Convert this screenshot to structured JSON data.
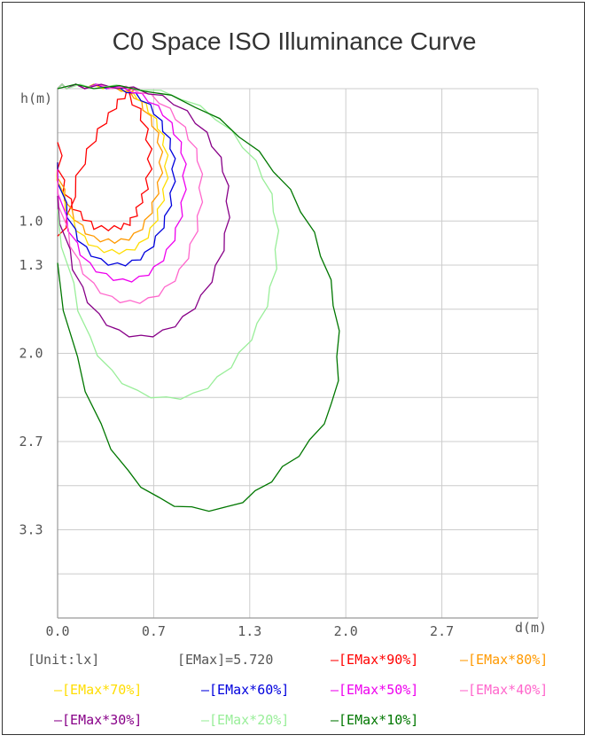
{
  "chart_data": {
    "type": "line",
    "title": "C0 Space ISO Illuminance Curve",
    "ylabel": "h(m)",
    "xlabel": "d(m)",
    "x_ticks": [
      "0.0",
      "0.7",
      "1.3",
      "2.0",
      "2.7"
    ],
    "y_ticks": [
      "1.0",
      "1.3",
      "2.0",
      "2.7",
      "3.3"
    ],
    "xlim": [
      0,
      2.65
    ],
    "ylim": [
      0,
      3.95
    ],
    "y_inverted": true,
    "grid": true,
    "unit_text": "[Unit:lx]",
    "emax_text": "[EMax]=5.720",
    "series": [
      {
        "name": "[EMax*90%]",
        "color": "#ff0000",
        "points": [
          [
            0,
            1.1
          ],
          [
            0.05,
            0.95
          ],
          [
            0.1,
            0.65
          ],
          [
            0.16,
            0.45
          ],
          [
            0.22,
            0.3
          ],
          [
            0.28,
            0.18
          ],
          [
            0.33,
            0.08
          ],
          [
            0.38,
            0.02
          ],
          [
            0.42,
            0
          ],
          [
            0.4,
            0.05
          ],
          [
            0.46,
            0.15
          ],
          [
            0.5,
            0.3
          ],
          [
            0.52,
            0.45
          ],
          [
            0.52,
            0.6
          ],
          [
            0.5,
            0.75
          ],
          [
            0.47,
            0.85
          ],
          [
            0.44,
            0.95
          ],
          [
            0.4,
            1.02
          ],
          [
            0.35,
            1.05
          ],
          [
            0.28,
            1.06
          ],
          [
            0.2,
            1.05
          ],
          [
            0.14,
            0.98
          ],
          [
            0.08,
            0.9
          ],
          [
            0.03,
            0.78
          ],
          [
            0,
            0.6
          ],
          [
            0,
            0.4
          ]
        ]
      },
      {
        "name": "[EMax*80%]",
        "color": "#ff9900",
        "points": [
          [
            0,
            0.55
          ],
          [
            0.04,
            0.75
          ],
          [
            0.08,
            0.9
          ],
          [
            0.14,
            1.02
          ],
          [
            0.2,
            1.1
          ],
          [
            0.28,
            1.12
          ],
          [
            0.35,
            1.12
          ],
          [
            0.42,
            1.08
          ],
          [
            0.48,
            0.98
          ],
          [
            0.52,
            0.85
          ],
          [
            0.55,
            0.7
          ],
          [
            0.56,
            0.55
          ],
          [
            0.55,
            0.4
          ],
          [
            0.52,
            0.28
          ],
          [
            0.47,
            0.16
          ],
          [
            0.42,
            0.07
          ],
          [
            0.35,
            0.02
          ],
          [
            0.25,
            0
          ],
          [
            0.15,
            0
          ],
          [
            0.05,
            0
          ],
          [
            0,
            0
          ]
        ]
      },
      {
        "name": "[EMax*70%]",
        "color": "#ffdd00",
        "points": [
          [
            0,
            0.55
          ],
          [
            0.04,
            0.8
          ],
          [
            0.09,
            0.98
          ],
          [
            0.15,
            1.1
          ],
          [
            0.22,
            1.18
          ],
          [
            0.3,
            1.2
          ],
          [
            0.38,
            1.2
          ],
          [
            0.45,
            1.15
          ],
          [
            0.51,
            1.04
          ],
          [
            0.55,
            0.9
          ],
          [
            0.58,
            0.75
          ],
          [
            0.59,
            0.58
          ],
          [
            0.58,
            0.42
          ],
          [
            0.55,
            0.3
          ],
          [
            0.5,
            0.18
          ],
          [
            0.44,
            0.08
          ],
          [
            0.36,
            0.02
          ],
          [
            0.25,
            0
          ],
          [
            0.15,
            0
          ],
          [
            0.05,
            0
          ],
          [
            0,
            0
          ]
        ]
      },
      {
        "name": "[EMax*60%]",
        "color": "#0000dd",
        "points": [
          [
            0,
            0.55
          ],
          [
            0.05,
            0.85
          ],
          [
            0.1,
            1.05
          ],
          [
            0.16,
            1.18
          ],
          [
            0.24,
            1.27
          ],
          [
            0.33,
            1.3
          ],
          [
            0.41,
            1.28
          ],
          [
            0.48,
            1.22
          ],
          [
            0.54,
            1.1
          ],
          [
            0.59,
            0.95
          ],
          [
            0.62,
            0.78
          ],
          [
            0.63,
            0.6
          ],
          [
            0.62,
            0.45
          ],
          [
            0.58,
            0.32
          ],
          [
            0.53,
            0.19
          ],
          [
            0.46,
            0.09
          ],
          [
            0.38,
            0.03
          ],
          [
            0.27,
            0
          ],
          [
            0.15,
            0
          ],
          [
            0.05,
            0
          ],
          [
            0,
            0
          ]
        ]
      },
      {
        "name": "[EMax*50%]",
        "color": "#ee00ee",
        "points": [
          [
            0,
            0.6
          ],
          [
            0.05,
            0.95
          ],
          [
            0.11,
            1.15
          ],
          [
            0.18,
            1.3
          ],
          [
            0.27,
            1.38
          ],
          [
            0.36,
            1.42
          ],
          [
            0.45,
            1.4
          ],
          [
            0.53,
            1.33
          ],
          [
            0.6,
            1.2
          ],
          [
            0.65,
            1.04
          ],
          [
            0.68,
            0.85
          ],
          [
            0.69,
            0.65
          ],
          [
            0.68,
            0.48
          ],
          [
            0.64,
            0.34
          ],
          [
            0.58,
            0.2
          ],
          [
            0.5,
            0.1
          ],
          [
            0.41,
            0.03
          ],
          [
            0.28,
            0
          ],
          [
            0.15,
            0
          ],
          [
            0.05,
            0
          ],
          [
            0,
            0
          ]
        ]
      },
      {
        "name": "[EMax*40%]",
        "color": "#ff66cc",
        "points": [
          [
            0,
            0.7
          ],
          [
            0.06,
            1.05
          ],
          [
            0.12,
            1.28
          ],
          [
            0.2,
            1.45
          ],
          [
            0.3,
            1.55
          ],
          [
            0.4,
            1.58
          ],
          [
            0.5,
            1.56
          ],
          [
            0.59,
            1.48
          ],
          [
            0.67,
            1.35
          ],
          [
            0.73,
            1.16
          ],
          [
            0.77,
            0.95
          ],
          [
            0.78,
            0.74
          ],
          [
            0.77,
            0.54
          ],
          [
            0.72,
            0.38
          ],
          [
            0.65,
            0.23
          ],
          [
            0.56,
            0.11
          ],
          [
            0.45,
            0.03
          ],
          [
            0.3,
            0
          ],
          [
            0.15,
            0
          ],
          [
            0.05,
            0
          ],
          [
            0,
            0
          ]
        ]
      },
      {
        "name": "[EMax*30%]",
        "color": "#880088",
        "points": [
          [
            0,
            0.8
          ],
          [
            0.07,
            1.2
          ],
          [
            0.14,
            1.48
          ],
          [
            0.23,
            1.68
          ],
          [
            0.34,
            1.8
          ],
          [
            0.46,
            1.84
          ],
          [
            0.58,
            1.8
          ],
          [
            0.69,
            1.7
          ],
          [
            0.79,
            1.54
          ],
          [
            0.87,
            1.32
          ],
          [
            0.92,
            1.08
          ],
          [
            0.93,
            0.84
          ],
          [
            0.91,
            0.62
          ],
          [
            0.85,
            0.43
          ],
          [
            0.76,
            0.26
          ],
          [
            0.64,
            0.12
          ],
          [
            0.5,
            0.04
          ],
          [
            0.33,
            0
          ],
          [
            0.15,
            0
          ],
          [
            0.05,
            0
          ],
          [
            0,
            0
          ]
        ]
      },
      {
        "name": "[EMax*20%]",
        "color": "#99ee99",
        "points": [
          [
            0,
            0.9
          ],
          [
            0.09,
            1.45
          ],
          [
            0.18,
            1.85
          ],
          [
            0.3,
            2.1
          ],
          [
            0.44,
            2.25
          ],
          [
            0.6,
            2.3
          ],
          [
            0.75,
            2.27
          ],
          [
            0.88,
            2.15
          ],
          [
            1,
            1.97
          ],
          [
            1.1,
            1.75
          ],
          [
            1.17,
            1.48
          ],
          [
            1.2,
            1.2
          ],
          [
            1.19,
            0.92
          ],
          [
            1.13,
            0.67
          ],
          [
            1.02,
            0.44
          ],
          [
            0.87,
            0.23
          ],
          [
            0.68,
            0.08
          ],
          [
            0.45,
            0.01
          ],
          [
            0.2,
            0
          ],
          [
            0.05,
            0
          ],
          [
            0,
            0
          ]
        ]
      },
      {
        "name": "[EMax*10%]",
        "color": "#007700",
        "points": [
          [
            0,
            1.3
          ],
          [
            0.11,
            2
          ],
          [
            0.24,
            2.5
          ],
          [
            0.39,
            2.85
          ],
          [
            0.56,
            3.05
          ],
          [
            0.74,
            3.12
          ],
          [
            0.93,
            3.12
          ],
          [
            1.09,
            3
          ],
          [
            1.24,
            2.82
          ],
          [
            1.39,
            2.62
          ],
          [
            1.51,
            2.35
          ],
          [
            1.54,
            2
          ],
          [
            1.52,
            1.62
          ],
          [
            1.45,
            1.25
          ],
          [
            1.34,
            0.92
          ],
          [
            1.19,
            0.62
          ],
          [
            1,
            0.36
          ],
          [
            0.76,
            0.14
          ],
          [
            0.48,
            0.02
          ],
          [
            0.2,
            0
          ],
          [
            0,
            0
          ]
        ]
      }
    ]
  }
}
